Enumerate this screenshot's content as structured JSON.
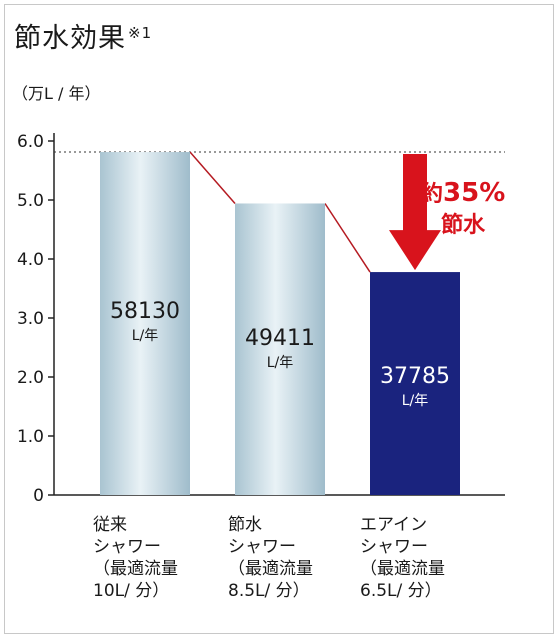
{
  "title": "節水効果",
  "title_note": "※1",
  "unit_label": "（万L / 年）",
  "callout": {
    "prefix": "約",
    "percent": "35%",
    "suffix": "節水",
    "color": "#d8131c"
  },
  "chart_data": {
    "type": "bar",
    "categories": [
      [
        "従来",
        "シャワー",
        "（最適流量",
        "10L/ 分）"
      ],
      [
        "節水",
        "シャワー",
        "（最適流量",
        "8.5L/ 分）"
      ],
      [
        "エアイン",
        "シャワー",
        "（最適流量",
        "6.5L/ 分）"
      ]
    ],
    "values": [
      5.813,
      4.9411,
      3.7785
    ],
    "value_labels": [
      "58130",
      "49411",
      "37785"
    ],
    "value_unit": "L/年",
    "ylim": [
      0,
      6.0
    ],
    "yticks": [
      "0",
      "1.0",
      "2.0",
      "3.0",
      "4.0",
      "5.0",
      "6.0"
    ],
    "bar_colors": [
      "#b9d3de",
      "#b9d3de",
      "#1a237e"
    ],
    "connector_color": "#b51b22",
    "reference_line": 5.813
  }
}
